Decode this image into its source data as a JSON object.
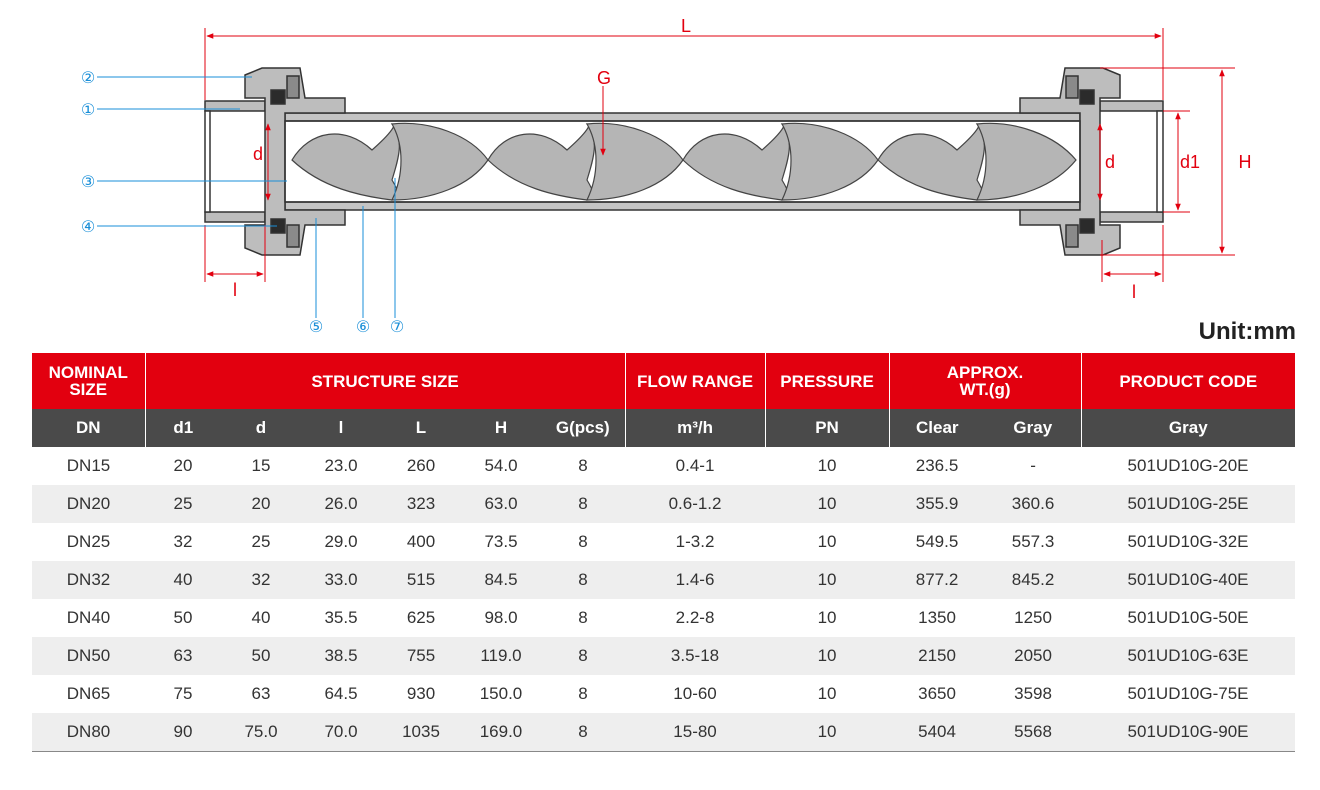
{
  "diagram": {
    "dimension_labels": {
      "L": "L",
      "G": "G",
      "d_left": "d",
      "d_right": "d",
      "d1": "d1",
      "H": "H",
      "l_left": "l",
      "l_right": "l"
    },
    "part_callouts": [
      "①",
      "②",
      "③",
      "④",
      "⑤",
      "⑥",
      "⑦"
    ],
    "colors": {
      "dimension": "#e2000f",
      "callout": "#1a8fd8",
      "body": "#b9b9b9",
      "outline": "#333333"
    }
  },
  "unit_label": "Unit:mm",
  "table": {
    "header_top": {
      "nominal_size": [
        "NOMINAL",
        "SIZE"
      ],
      "structure_size": "STRUCTURE SIZE",
      "flow_range": "FLOW RANGE",
      "pressure": "PRESSURE",
      "approx_wt": [
        "APPROX.",
        "WT.(g)"
      ],
      "product_code": "PRODUCT CODE"
    },
    "header_sub": [
      "DN",
      "d1",
      "d",
      "l",
      "L",
      "H",
      "G(pcs)",
      "m³/h",
      "PN",
      "Clear",
      "Gray",
      "Gray"
    ],
    "rows": [
      [
        "DN15",
        "20",
        "15",
        "23.0",
        "260",
        "54.0",
        "8",
        "0.4-1",
        "10",
        "236.5",
        "-",
        "501UD10G-20E"
      ],
      [
        "DN20",
        "25",
        "20",
        "26.0",
        "323",
        "63.0",
        "8",
        "0.6-1.2",
        "10",
        "355.9",
        "360.6",
        "501UD10G-25E"
      ],
      [
        "DN25",
        "32",
        "25",
        "29.0",
        "400",
        "73.5",
        "8",
        "1-3.2",
        "10",
        "549.5",
        "557.3",
        "501UD10G-32E"
      ],
      [
        "DN32",
        "40",
        "32",
        "33.0",
        "515",
        "84.5",
        "8",
        "1.4-6",
        "10",
        "877.2",
        "845.2",
        "501UD10G-40E"
      ],
      [
        "DN40",
        "50",
        "40",
        "35.5",
        "625",
        "98.0",
        "8",
        "2.2-8",
        "10",
        "1350",
        "1250",
        "501UD10G-50E"
      ],
      [
        "DN50",
        "63",
        "50",
        "38.5",
        "755",
        "119.0",
        "8",
        "3.5-18",
        "10",
        "2150",
        "2050",
        "501UD10G-63E"
      ],
      [
        "DN65",
        "75",
        "63",
        "64.5",
        "930",
        "150.0",
        "8",
        "10-60",
        "10",
        "3650",
        "3598",
        "501UD10G-75E"
      ],
      [
        "DN80",
        "90",
        "75.0",
        "70.0",
        "1035",
        "169.0",
        "8",
        "15-80",
        "10",
        "5404",
        "5568",
        "501UD10G-90E"
      ]
    ]
  }
}
